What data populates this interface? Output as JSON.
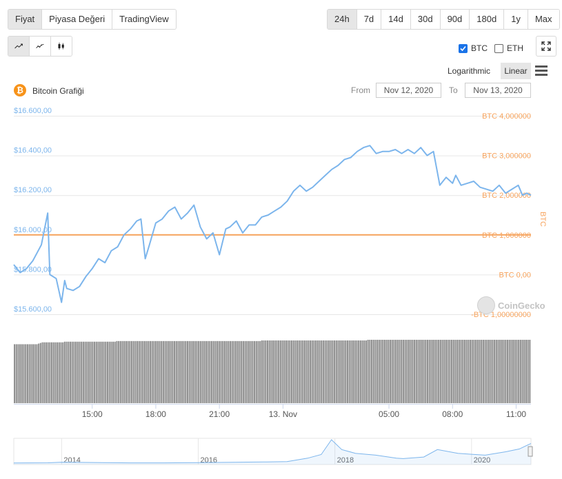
{
  "tabs": [
    {
      "label": "Fiyat",
      "active": true
    },
    {
      "label": "Piyasa Değeri",
      "active": false
    },
    {
      "label": "TradingView",
      "active": false
    }
  ],
  "ranges": [
    {
      "label": "24h",
      "active": true
    },
    {
      "label": "7d",
      "active": false
    },
    {
      "label": "14d",
      "active": false
    },
    {
      "label": "30d",
      "active": false
    },
    {
      "label": "90d",
      "active": false
    },
    {
      "label": "180d",
      "active": false
    },
    {
      "label": "1y",
      "active": false
    },
    {
      "label": "Max",
      "active": false
    }
  ],
  "chart_types": [
    {
      "icon": "line-chart-icon",
      "active": true
    },
    {
      "icon": "smooth-line-chart-icon",
      "active": false
    },
    {
      "icon": "candlestick-chart-icon",
      "active": false
    }
  ],
  "compare": [
    {
      "label": "BTC",
      "checked": true
    },
    {
      "label": "ETH",
      "checked": false
    }
  ],
  "scale": {
    "log_label": "Logarithmic",
    "linear_label": "Linear",
    "selected": "Linear"
  },
  "chart_header": {
    "title": "Bitcoin Grafiği",
    "from_label": "From",
    "from_value": "Nov 12, 2020",
    "to_label": "To",
    "to_value": "Nov 13, 2020"
  },
  "watermark": "CoinGecko",
  "colors": {
    "price_line": "#7cb5ec",
    "btc_line": "#f7a35c",
    "btc_axis_text": "#f7a35c",
    "price_axis_text": "#7cb5ec",
    "volume_bars": "#8f8f8f",
    "navigator_line": "#7cb5ec",
    "bitcoin_icon": "#f7931a"
  },
  "chart_data": [
    {
      "type": "line",
      "title": "Bitcoin Grafiği",
      "ylim": [
        15600,
        16600
      ],
      "y_ticks": [
        "$16.600,00",
        "$16.400,00",
        "$16.200,00",
        "$16.000,00",
        "$15.800,00",
        "$15.600,00"
      ],
      "y2_label": "BTC",
      "y2_ticks": [
        "BTC 4,000000",
        "BTC 3,000000",
        "BTC 2,000000",
        "BTC 1,000000",
        "BTC 0,00",
        "-BTC 1,00000000"
      ],
      "y2lim": [
        -1,
        4
      ],
      "x_ticks": [
        "15:00",
        "18:00",
        "21:00",
        "13. Nov",
        "05:00",
        "08:00",
        "11:00"
      ],
      "x_tick_hours": [
        15,
        18,
        21,
        24,
        29,
        32,
        35
      ],
      "xlim_hours": [
        11.3,
        35.7
      ],
      "grid": true,
      "series": [
        {
          "name": "BTC",
          "axis": "right",
          "x_hours": [
            11.3,
            35.7
          ],
          "values": [
            1,
            1
          ]
        },
        {
          "axis": "left",
          "x_hours": [
            11.3,
            11.6,
            11.9,
            12.2,
            12.6,
            12.9,
            13.0,
            13.3,
            13.55,
            13.7,
            13.8,
            14.1,
            14.4,
            14.7,
            15.0,
            15.3,
            15.6,
            15.9,
            16.2,
            16.5,
            16.8,
            17.1,
            17.3,
            17.5,
            17.7,
            18.0,
            18.3,
            18.6,
            18.9,
            19.2,
            19.5,
            19.8,
            20.1,
            20.4,
            20.7,
            21.0,
            21.3,
            21.5,
            21.8,
            22.1,
            22.4,
            22.7,
            23.0,
            23.3,
            23.6,
            23.9,
            24.2,
            24.5,
            24.8,
            25.1,
            25.4,
            25.7,
            26.0,
            26.3,
            26.6,
            26.9,
            27.2,
            27.5,
            27.8,
            28.1,
            28.4,
            28.7,
            29.0,
            29.3,
            29.6,
            29.9,
            30.2,
            30.5,
            30.8,
            31.1,
            31.4,
            31.7,
            32.0,
            32.15,
            32.4,
            32.7,
            33.0,
            33.3,
            33.6,
            33.9,
            34.2,
            34.5,
            34.8,
            35.1,
            35.3,
            35.5,
            35.7
          ],
          "values": [
            15850,
            15810,
            15830,
            15870,
            15950,
            16110,
            15800,
            15780,
            15660,
            15770,
            15730,
            15720,
            15740,
            15790,
            15830,
            15880,
            15860,
            15920,
            15940,
            16000,
            16030,
            16070,
            16080,
            15880,
            15950,
            16060,
            16080,
            16120,
            16140,
            16080,
            16110,
            16150,
            16040,
            15980,
            16010,
            15900,
            16030,
            16040,
            16070,
            16010,
            16050,
            16050,
            16090,
            16100,
            16120,
            16140,
            16170,
            16220,
            16250,
            16220,
            16240,
            16270,
            16300,
            16330,
            16350,
            16380,
            16390,
            16420,
            16440,
            16450,
            16410,
            16420,
            16420,
            16430,
            16410,
            16430,
            16410,
            16440,
            16400,
            16420,
            16250,
            16290,
            16260,
            16300,
            16250,
            16260,
            16270,
            16240,
            16230,
            16220,
            16250,
            16210,
            16230,
            16250,
            16200,
            16210,
            16200
          ]
        }
      ],
      "volume": {
        "description_free": true,
        "relative_values": [
          0.93,
          0.93,
          0.93,
          0.93,
          0.93,
          0.93,
          0.93,
          0.93,
          0.93,
          0.93,
          0.93,
          0.93,
          0.93,
          0.94,
          0.95,
          0.96,
          0.96,
          0.96,
          0.96,
          0.96,
          0.96,
          0.96,
          0.96,
          0.96,
          0.96,
          0.96,
          0.96,
          0.97,
          0.97,
          0.97,
          0.97,
          0.97,
          0.97,
          0.97,
          0.97,
          0.97,
          0.97,
          0.97,
          0.97,
          0.97,
          0.97,
          0.97,
          0.97,
          0.97,
          0.97,
          0.97,
          0.97,
          0.97,
          0.97,
          0.97,
          0.97,
          0.97,
          0.97,
          0.97,
          0.97,
          0.98,
          0.98,
          0.98,
          0.98,
          0.98,
          0.98,
          0.98,
          0.98,
          0.98,
          0.98,
          0.98,
          0.98,
          0.98,
          0.98,
          0.98,
          0.98,
          0.98,
          0.98,
          0.98,
          0.98,
          0.98,
          0.98,
          0.98,
          0.98,
          0.98,
          0.98,
          0.98,
          0.98,
          0.98,
          0.98,
          0.98,
          0.98,
          0.98,
          0.98,
          0.98,
          0.98,
          0.98,
          0.98,
          0.98,
          0.98,
          0.98,
          0.98,
          0.98,
          0.98,
          0.98,
          0.98,
          0.98,
          0.98,
          0.98,
          0.98,
          0.98,
          0.98,
          0.98,
          0.98,
          0.98,
          0.98,
          0.98,
          0.98,
          0.98,
          0.98,
          0.98,
          0.98,
          0.98,
          0.98,
          0.98,
          0.98,
          0.98,
          0.98,
          0.98,
          0.98,
          0.98,
          0.98,
          0.98,
          0.98,
          0.98,
          0.98,
          0.98,
          0.98,
          0.99,
          0.99,
          0.99,
          0.99,
          0.99,
          0.99,
          0.99,
          0.99,
          0.99,
          0.99,
          0.99,
          0.99,
          0.99,
          0.99,
          0.99,
          0.99,
          0.99,
          0.99,
          0.99,
          0.99,
          0.99,
          0.99,
          0.99,
          0.99,
          0.99,
          0.99,
          0.99,
          0.99,
          0.99,
          0.99,
          0.99,
          0.99,
          0.99,
          0.99,
          0.99,
          0.99,
          0.99,
          0.99,
          0.99,
          0.99,
          0.99,
          0.99,
          0.99,
          0.99,
          0.99,
          0.99,
          0.99,
          0.99,
          0.99,
          0.99,
          0.99,
          0.99,
          0.99,
          0.99,
          0.99,
          0.99,
          0.99,
          1.0,
          1.0,
          1.0,
          1.0,
          1.0,
          1.0,
          1.0,
          1.0,
          1.0,
          1.0,
          1.0,
          1.0,
          1.0,
          1.0,
          1.0,
          1.0,
          1.0,
          1.0,
          1.0,
          1.0,
          1.0,
          1.0,
          1.0,
          1.0,
          1.0,
          1.0,
          1.0,
          1.0,
          1.0,
          1.0,
          1.0,
          1.0,
          1.0,
          1.0,
          1.0,
          1.0,
          1.0,
          1.0,
          1.0,
          1.0,
          1.0,
          1.0,
          1.0,
          1.0,
          1.0,
          1.0,
          1.0,
          1.0,
          1.0,
          1.0,
          1.0,
          1.0,
          1.0,
          1.0,
          1.0,
          1.0,
          1.0,
          1.0,
          1.0,
          1.0,
          1.0,
          1.0,
          1.0,
          1.0,
          1.0,
          1.0,
          1.0,
          1.0,
          1.0,
          1.0,
          1.0,
          1.0,
          1.0,
          1.0,
          1.0,
          1.0,
          1.0,
          1.0,
          1.0,
          1.0,
          1.0,
          1.0,
          1.0,
          1.0,
          1.0,
          1.0,
          1.0,
          1.0
        ]
      },
      "navigator": {
        "x_ticks": [
          "2014",
          "2016",
          "2018",
          "2020"
        ],
        "x_tick_years": [
          2014,
          2016,
          2018,
          2020
        ],
        "xlim_years": [
          2013.3,
          2020.87
        ],
        "x_years": [
          2013.3,
          2013.8,
          2014.0,
          2014.5,
          2015.0,
          2015.5,
          2016.0,
          2016.5,
          2017.0,
          2017.3,
          2017.6,
          2017.8,
          2017.95,
          2018.1,
          2018.3,
          2018.6,
          2018.9,
          2019.0,
          2019.3,
          2019.5,
          2019.8,
          2020.0,
          2020.2,
          2020.5,
          2020.7,
          2020.87
        ],
        "values": [
          120,
          300,
          800,
          500,
          250,
          240,
          400,
          650,
          1000,
          1300,
          4000,
          7000,
          19000,
          11000,
          8000,
          6500,
          4000,
          3700,
          5000,
          11000,
          8000,
          7200,
          6500,
          9200,
          11500,
          16000
        ]
      }
    }
  ]
}
